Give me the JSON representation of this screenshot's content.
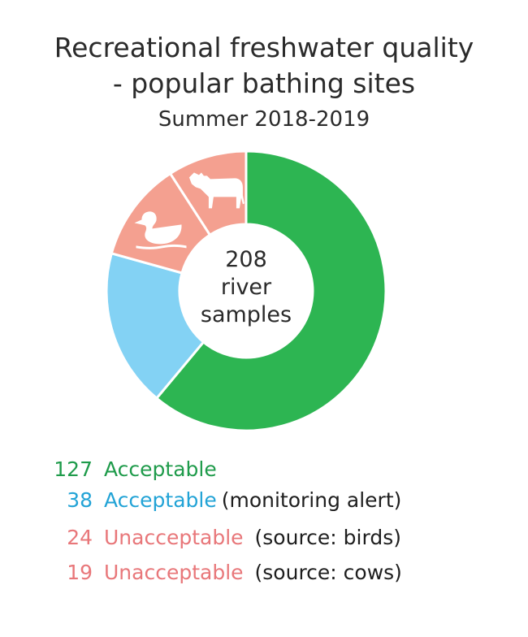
{
  "header": {
    "title_line1": "Recreational freshwater quality",
    "title_line2": "- popular bathing sites",
    "subtitle": "Summer 2018-2019"
  },
  "center_label": {
    "line1": "208",
    "line2": "river",
    "line3": "samples"
  },
  "chart_data": {
    "type": "pie",
    "donut": true,
    "total": 208,
    "slices": [
      {
        "value": 127,
        "label": "Acceptable",
        "note": "",
        "color": "#2db552",
        "text_color": "#1f9b4b",
        "icon": ""
      },
      {
        "value": 38,
        "label": "Acceptable",
        "note": "(monitoring alert)",
        "color": "#83d2f4",
        "text_color": "#22a3d6",
        "icon": ""
      },
      {
        "value": 24,
        "label": "Unacceptable",
        "note": "(source: birds)",
        "color": "#f4a090",
        "text_color": "#e8777a",
        "icon": "duck-icon"
      },
      {
        "value": 19,
        "label": "Unacceptable",
        "note": "(source: cows)",
        "color": "#f4a090",
        "text_color": "#e8777a",
        "icon": "cow-icon"
      }
    ]
  }
}
